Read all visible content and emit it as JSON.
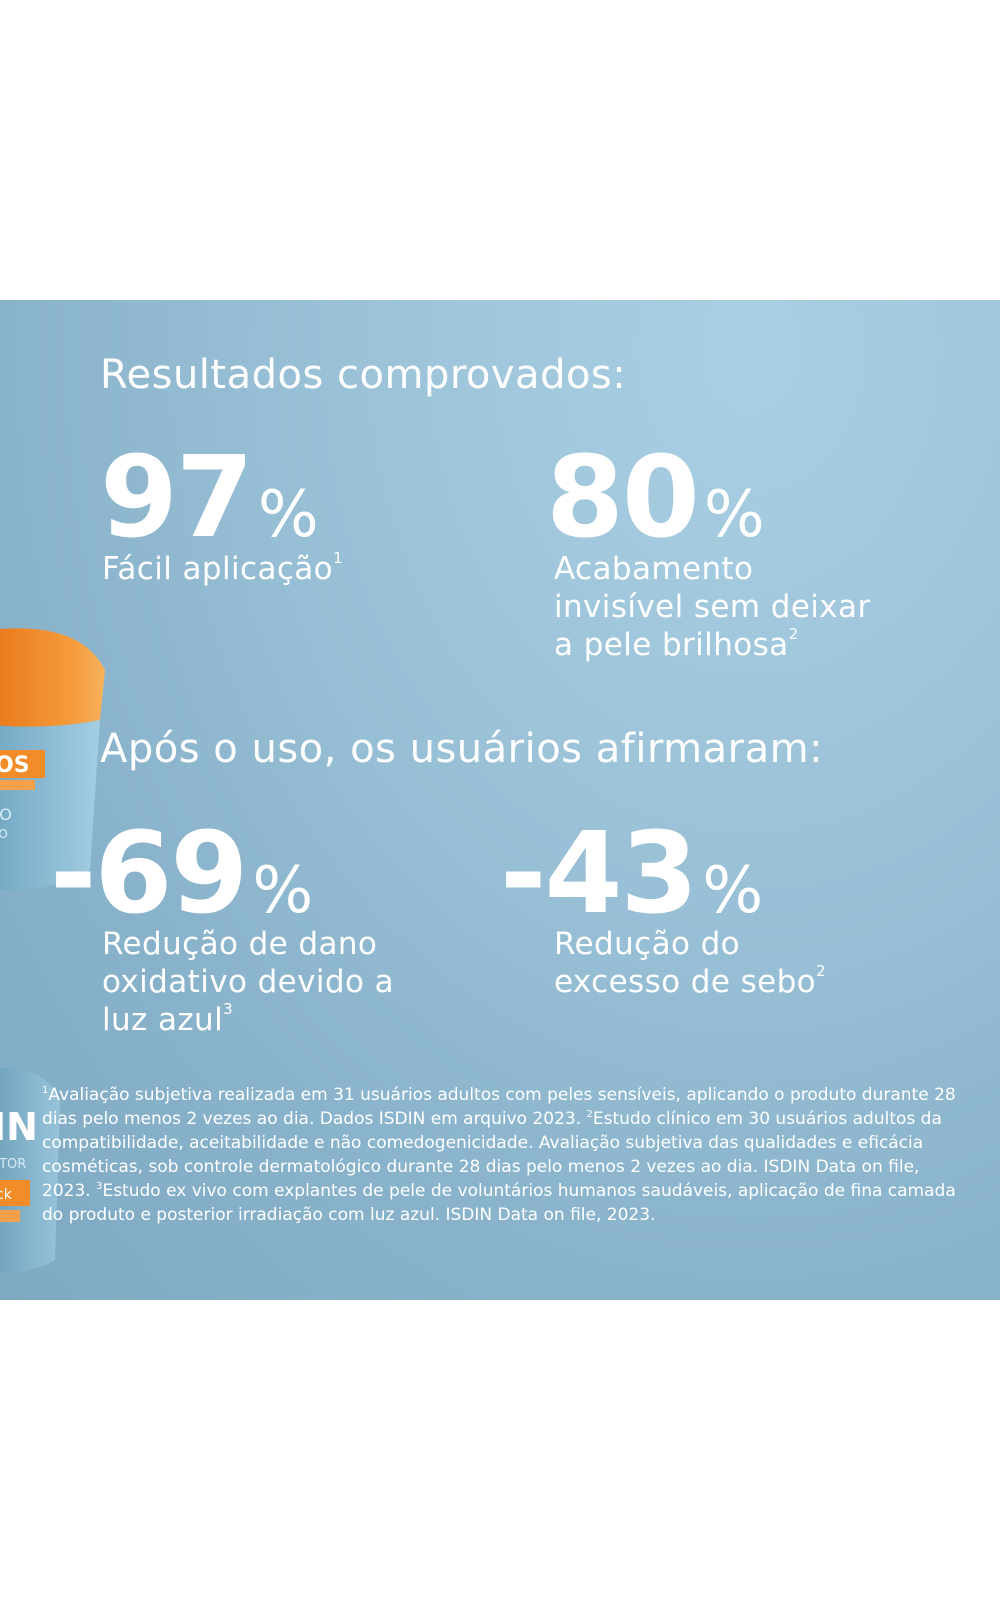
{
  "banner": {
    "heading1": "Resultados comprovados:",
    "stats1": [
      {
        "value": "97",
        "unit": "%",
        "label": "Fácil aplicação",
        "sup": "1"
      },
      {
        "value": "80",
        "unit": "%",
        "label_lines": [
          "Acabamento",
          "invisível sem deixar",
          "a pele brilhosa"
        ],
        "sup": "2"
      }
    ],
    "heading2": "Após o uso, os usuários afirmaram:",
    "stats2": [
      {
        "value": "-69",
        "unit": "%",
        "label_lines": [
          "Redução de dano",
          "oxidativo devido a",
          "luz azul"
        ],
        "sup": "3"
      },
      {
        "value": "-43",
        "unit": "%",
        "label_lines": [
          "Redução do",
          "excesso de sebo"
        ],
        "sup": "2"
      }
    ],
    "footnote": {
      "s1": "1",
      "t1": "Avaliação subjetiva realizada em 31 usuários adultos com peles sensíveis, aplicando o produto durante 28 dias pelo menos 2 vezes ao dia. Dados ISDIN em arquivo 2023. ",
      "s2": "2",
      "t2": "Estudo clínico em 30 usuários adultos da compatibilidade, aceitabilidade e não comedogenicidade. Avaliação subjetiva das qualidades e eficácia cosméticas, sob controle dermatológico durante 28 dias pelo menos 2 vezes ao dia. ISDIN Data on file, 2023. ",
      "s3": "3",
      "t3": "Estudo ex vivo com explantes de pele de voluntários humanos saudáveis, aplicação de fina camada do produto e posterior irradiação com luz azul. ISDIN Data on file, 2023."
    },
    "colors": {
      "background": "#8fb8cf",
      "text": "#ffffff",
      "jar_lid": "#f28c28"
    }
  }
}
